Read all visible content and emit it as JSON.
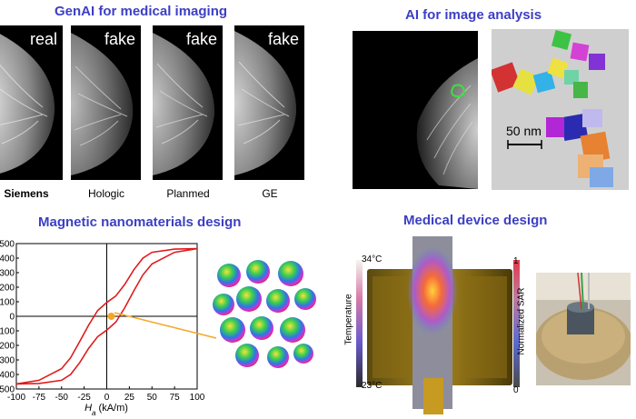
{
  "sections": {
    "genai": {
      "title": "GenAI for medical imaging"
    },
    "analysis": {
      "title": "AI for image analysis"
    },
    "magnetic": {
      "title": "Magnetic nanomaterials design"
    },
    "device": {
      "title": "Medical device design"
    }
  },
  "genai_panels": [
    {
      "tag": "real",
      "vendor": "Siemens"
    },
    {
      "tag": "fake",
      "vendor": "Hologic"
    },
    {
      "tag": "fake",
      "vendor": "Planmed"
    },
    {
      "tag": "fake",
      "vendor": "GE"
    }
  ],
  "analysis": {
    "scale_label": "50 nm"
  },
  "device": {
    "temp_max": "34°C",
    "temp_min": "23°C",
    "temp_label": "Temperature",
    "sar_max": "1",
    "sar_min": "0",
    "sar_label": "Normalized SAR"
  },
  "chart_data": {
    "type": "line",
    "xlabel_main": "H",
    "xlabel_sub": "a",
    "xlabel_unit": " (kA/m)",
    "xlim": [
      -100,
      100
    ],
    "ylim": [
      -500,
      500
    ],
    "x_ticks": [
      -100,
      -75,
      -50,
      -25,
      0,
      25,
      50,
      75,
      100
    ],
    "y_ticks": [
      500,
      400,
      300,
      200,
      100,
      0,
      -100,
      -200,
      -300,
      -400,
      -500
    ],
    "color": "#e01b1b",
    "series": [
      {
        "branch": "descending",
        "x": [
          100,
          75,
          50,
          40,
          30,
          20,
          10,
          0,
          -10,
          -20,
          -30,
          -40,
          -50,
          -75,
          -100
        ],
        "y": [
          465,
          462,
          440,
          400,
          320,
          220,
          140,
          95,
          40,
          -60,
          -175,
          -285,
          -360,
          -440,
          -465
        ]
      },
      {
        "branch": "ascending",
        "x": [
          -100,
          -75,
          -50,
          -40,
          -30,
          -20,
          -10,
          0,
          10,
          20,
          30,
          40,
          50,
          75,
          100
        ],
        "y": [
          -465,
          -462,
          -440,
          -400,
          -320,
          -220,
          -140,
          -95,
          -40,
          60,
          175,
          285,
          360,
          440,
          465
        ]
      }
    ],
    "marker": {
      "x": 5,
      "y": 0,
      "color": "#f5a623"
    }
  }
}
